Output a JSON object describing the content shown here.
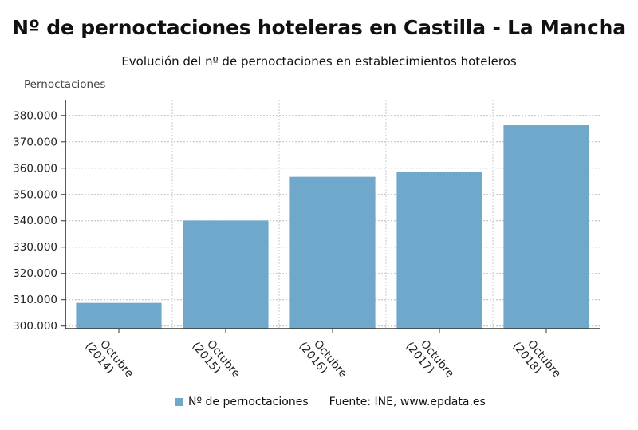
{
  "chart_data": {
    "type": "bar",
    "title": "Nº de pernoctaciones hoteleras en Castilla - La Mancha",
    "subtitle": "Evolución del nº de pernoctaciones en establecimientos hoteleros",
    "ylabel": "Pernoctaciones",
    "xlabel": "",
    "categories": [
      [
        "Octubre",
        "(2014)"
      ],
      [
        "Octubre",
        "(2015)"
      ],
      [
        "Octubre",
        "(2016)"
      ],
      [
        "Octubre",
        "(2017)"
      ],
      [
        "Octubre",
        "(2018)"
      ]
    ],
    "series": [
      {
        "name": "Nº de pernoctaciones",
        "color": "#6fa8cb",
        "values": [
          308800,
          340100,
          356700,
          358600,
          376300
        ]
      }
    ],
    "ylim": [
      299000,
      386000
    ],
    "yticks": [
      300000,
      310000,
      320000,
      330000,
      340000,
      350000,
      360000,
      370000,
      380000
    ],
    "ytick_labels": [
      "300.000",
      "310.000",
      "320.000",
      "330.000",
      "340.000",
      "350.000",
      "360.000",
      "370.000",
      "380.000"
    ],
    "grid": true,
    "legend_position": "bottom",
    "source": "Fuente: INE, www.epdata.es"
  }
}
